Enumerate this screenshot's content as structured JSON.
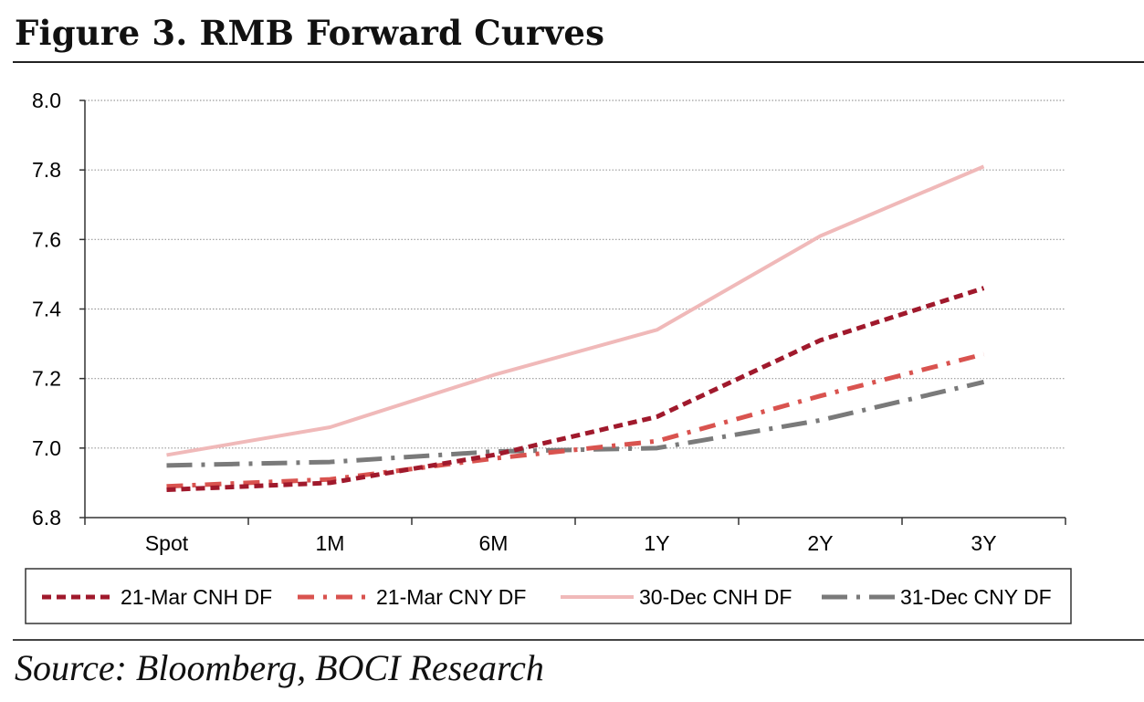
{
  "figure": {
    "title": "Figure 3. RMB Forward Curves",
    "source": "Source: Bloomberg, BOCI Research"
  },
  "colors": {
    "s1": "#a0192c",
    "s2": "#d9534f",
    "s3": "#f0b9b9",
    "s4": "#7a7a7a",
    "grid": "#9a9a9a",
    "axis": "#333333"
  },
  "chart_data": {
    "type": "line",
    "title": "",
    "xlabel": "",
    "ylabel": "",
    "categories": [
      "Spot",
      "1M",
      "6M",
      "1Y",
      "2Y",
      "3Y"
    ],
    "ylim": [
      6.8,
      8.0
    ],
    "yticks": [
      "8.0",
      "7.8",
      "7.6",
      "7.4",
      "7.2",
      "7.0",
      "6.8"
    ],
    "grid": "horizontal dotted",
    "legend_position": "bottom",
    "series": [
      {
        "name": "21-Mar CNH DF",
        "values": [
          6.88,
          6.9,
          6.98,
          7.09,
          7.31,
          7.46
        ],
        "style": "dashed",
        "color_key": "s1"
      },
      {
        "name": "21-Mar CNY DF",
        "values": [
          6.89,
          6.91,
          6.97,
          7.02,
          7.15,
          7.27
        ],
        "style": "dash-dot",
        "color_key": "s2"
      },
      {
        "name": "30-Dec CNH DF",
        "values": [
          6.98,
          7.06,
          7.21,
          7.34,
          7.61,
          7.81
        ],
        "style": "solid",
        "color_key": "s3"
      },
      {
        "name": "31-Dec CNY DF",
        "values": [
          6.95,
          6.96,
          6.99,
          7.0,
          7.08,
          7.19
        ],
        "style": "long-dash-dot",
        "color_key": "s4"
      }
    ]
  }
}
